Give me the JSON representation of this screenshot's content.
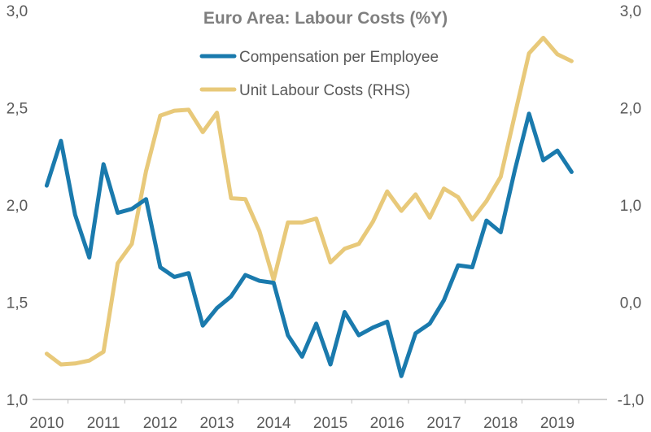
{
  "chart_data": {
    "type": "line",
    "title": "Euro Area: Labour Costs (%Y)",
    "colors": {
      "compensation": "#1a7aad",
      "ulc": "#e8c97a",
      "axis": "#bfbfbf",
      "text": "#595959",
      "title": "#7f7f7f"
    },
    "x_labels": [
      "2010",
      "2011",
      "2012",
      "2013",
      "2014",
      "2015",
      "2016",
      "2017",
      "2018",
      "2019"
    ],
    "x_range": [
      2009.75,
      2019.875
    ],
    "y_left": {
      "ticks": [
        "1,0",
        "1,5",
        "2,0",
        "2,5",
        "3,0"
      ],
      "range": [
        1.0,
        3.0
      ]
    },
    "y_right": {
      "ticks": [
        "-1,0",
        "0,0",
        "1,0",
        "2,0",
        "3,0"
      ],
      "range": [
        -1.0,
        3.0
      ]
    },
    "grid": false,
    "legend_position": "top-center",
    "series": [
      {
        "name": "Compensation per Employee",
        "axis": "left",
        "color": "#1a7aad",
        "x": [
          "2010 Q1",
          "2010 Q2",
          "2010 Q3",
          "2010 Q4",
          "2011 Q1",
          "2011 Q2",
          "2011 Q3",
          "2011 Q4",
          "2012 Q1",
          "2012 Q2",
          "2012 Q3",
          "2012 Q4",
          "2013 Q1",
          "2013 Q2",
          "2013 Q3",
          "2013 Q4",
          "2014 Q1",
          "2014 Q2",
          "2014 Q3",
          "2014 Q4",
          "2015 Q1",
          "2015 Q2",
          "2015 Q3",
          "2015 Q4",
          "2016 Q1",
          "2016 Q2",
          "2016 Q3",
          "2016 Q4",
          "2017 Q1",
          "2017 Q2",
          "2017 Q3",
          "2017 Q4",
          "2018 Q1",
          "2018 Q2",
          "2018 Q3",
          "2018 Q4",
          "2019 Q1",
          "2019 Q2"
        ],
        "values": [
          2.1,
          2.33,
          1.95,
          1.73,
          2.21,
          1.96,
          1.98,
          2.03,
          1.68,
          1.63,
          1.65,
          1.38,
          1.47,
          1.53,
          1.64,
          1.61,
          1.6,
          1.33,
          1.22,
          1.39,
          1.18,
          1.45,
          1.33,
          1.37,
          1.4,
          1.12,
          1.34,
          1.39,
          1.51,
          1.69,
          1.68,
          1.92,
          1.86,
          2.18,
          2.47,
          2.23,
          2.28,
          2.17
        ]
      },
      {
        "name": "Unit Labour Costs (RHS)",
        "axis": "right",
        "color": "#e8c97a",
        "x": [
          "2010 Q1",
          "2010 Q2",
          "2010 Q3",
          "2010 Q4",
          "2011 Q1",
          "2011 Q2",
          "2011 Q3",
          "2011 Q4",
          "2012 Q1",
          "2012 Q2",
          "2012 Q3",
          "2012 Q4",
          "2013 Q1",
          "2013 Q2",
          "2013 Q3",
          "2013 Q4",
          "2014 Q1",
          "2014 Q2",
          "2014 Q3",
          "2014 Q4",
          "2015 Q1",
          "2015 Q2",
          "2015 Q3",
          "2015 Q4",
          "2016 Q1",
          "2016 Q2",
          "2016 Q3",
          "2016 Q4",
          "2017 Q1",
          "2017 Q2",
          "2017 Q3",
          "2017 Q4",
          "2018 Q1",
          "2018 Q2",
          "2018 Q3",
          "2018 Q4",
          "2019 Q1",
          "2019 Q2"
        ],
        "values": [
          -0.53,
          -0.64,
          -0.63,
          -0.6,
          -0.51,
          0.4,
          0.6,
          1.35,
          1.92,
          1.97,
          1.98,
          1.75,
          1.95,
          1.07,
          1.06,
          0.73,
          0.23,
          0.82,
          0.82,
          0.86,
          0.41,
          0.55,
          0.6,
          0.83,
          1.14,
          0.94,
          1.11,
          0.87,
          1.17,
          1.08,
          0.85,
          1.04,
          1.29,
          1.93,
          2.56,
          2.72,
          2.55,
          2.48
        ]
      }
    ]
  }
}
